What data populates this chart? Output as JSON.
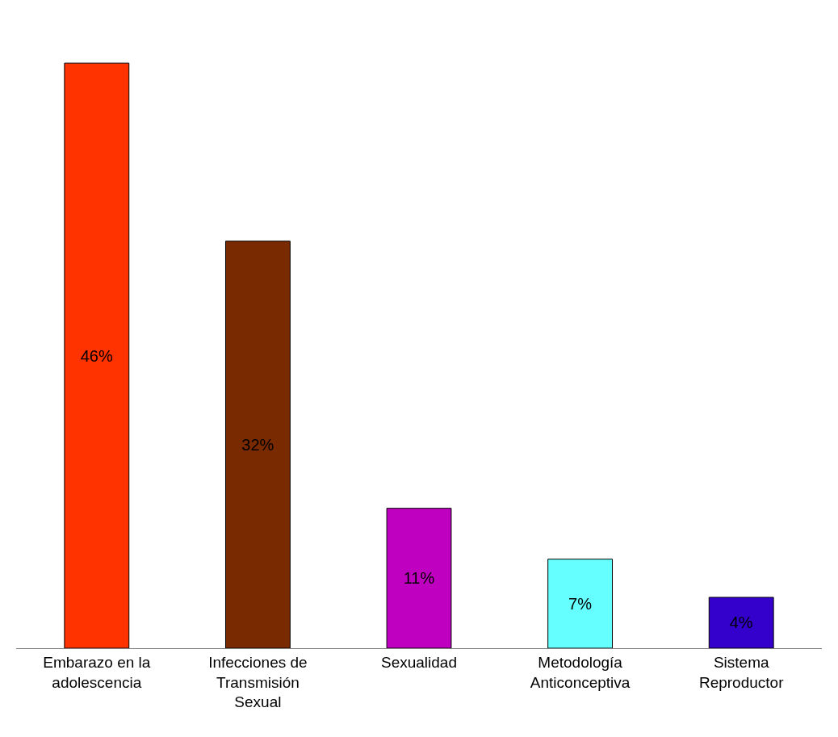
{
  "chart_data": {
    "type": "bar",
    "categories": [
      "Embarazo en la adolescencia",
      "Infecciones de Transmisión Sexual",
      "Sexualidad",
      "Metodología Anticonceptiva",
      "Sistema Reproductor"
    ],
    "values": [
      46,
      32,
      11,
      7,
      4
    ],
    "value_labels": [
      "46%",
      "32%",
      "11%",
      "7%",
      "4%"
    ],
    "colors": [
      "#ff3300",
      "#7a2a00",
      "#c000c0",
      "#66ffff",
      "#3300cc"
    ],
    "legend": false,
    "tick_labels": "x"
  }
}
